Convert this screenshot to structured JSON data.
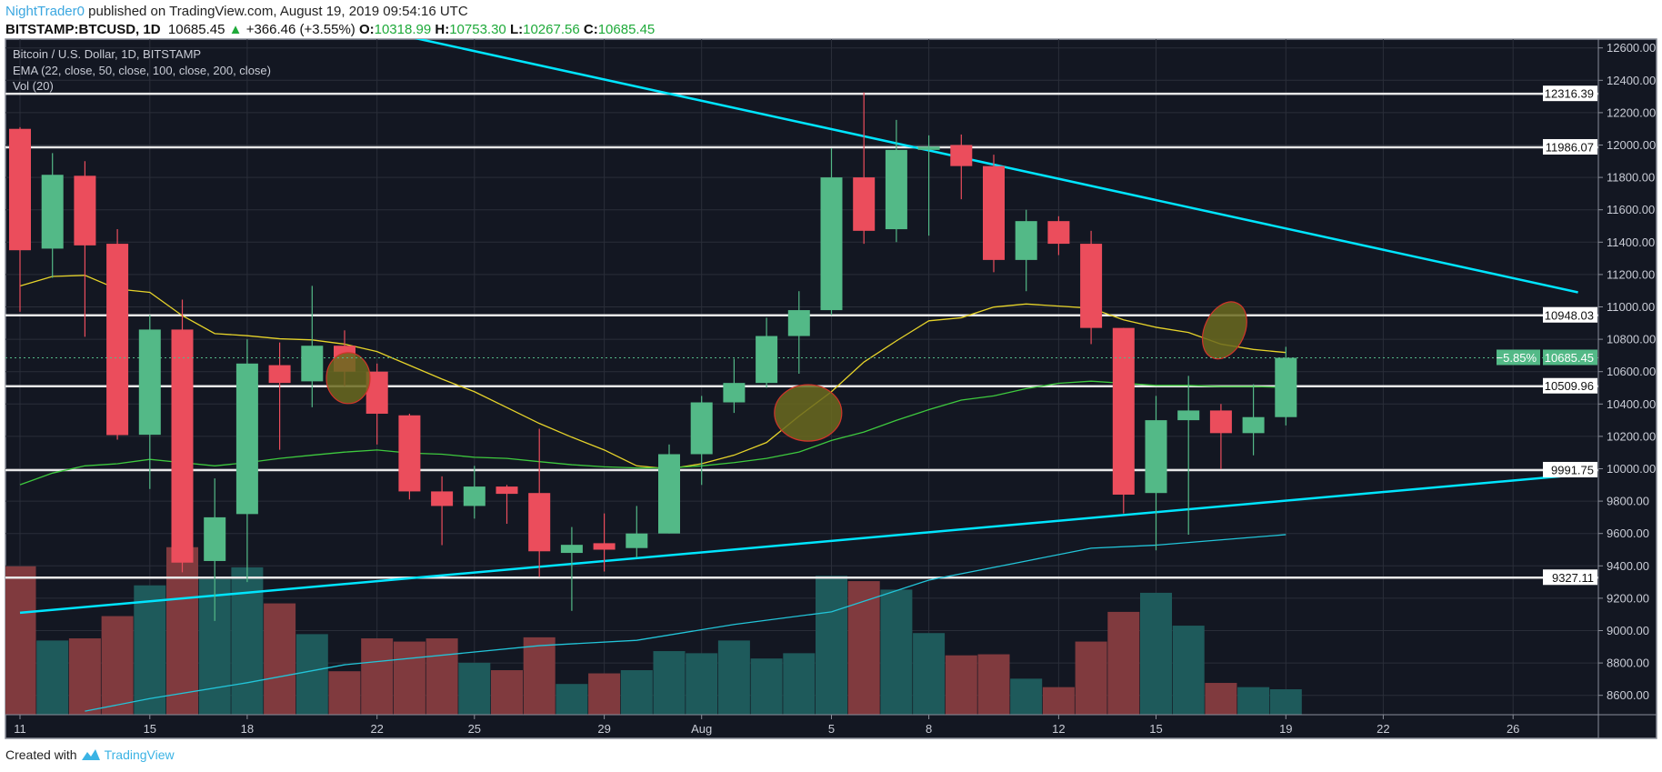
{
  "header": {
    "author": "NightTrader0",
    "published_text": "published on TradingView.com, August 19, 2019 09:54:16 UTC",
    "symbol": "BITSTAMP:BTCUSD, 1D",
    "last": "10685.45",
    "change": "+366.46 (+3.55%)",
    "up_icon": "triangle-up-icon",
    "o_label": "O:",
    "o": "10318.99",
    "h_label": "H:",
    "h": "10753.30",
    "l_label": "L:",
    "l": "10267.56",
    "c_label": "C:",
    "c": "10685.45"
  },
  "legend": {
    "title": "Bitcoin / U.S. Dollar, 1D, BITSTAMP",
    "ema": "EMA (22, close, 50, close, 100, close, 200, close)",
    "vol": "Vol (20)"
  },
  "footer": {
    "created_with": "Created with",
    "brand": "TradingView",
    "logo_icon": "tradingview-logo-icon"
  },
  "colors": {
    "background": "#131722",
    "grid": "#2a2e39",
    "up": "#53b987",
    "down": "#eb4d5c",
    "vol_up": "#1e5a5b",
    "vol_down": "#803a3e",
    "ema22": "#e6d32a",
    "ema50": "#3ec93e",
    "ema100": "#22c4d8",
    "trendline": "#00e5ff",
    "level": "#e8e8e8",
    "ellipse_fill": "#6b6a1e",
    "ellipse_stroke": "#d0352a"
  },
  "chart_data": {
    "type": "candlestick",
    "price_axis": {
      "min": 8600,
      "max": 12600,
      "step": 200,
      "tick_labels": [
        "12600.00",
        "12400.00",
        "12200.00",
        "12000.00",
        "11800.00",
        "11600.00",
        "11400.00",
        "11200.00",
        "11000.00",
        "10800.00",
        "10600.00",
        "10400.00",
        "10200.00",
        "10000.00",
        "9800.00",
        "9600.00",
        "9400.00",
        "9200.00",
        "9000.00",
        "8800.00",
        "8600.00"
      ]
    },
    "x_ticks": [
      {
        "label": "11",
        "date": "2019-07-11"
      },
      {
        "label": "15",
        "date": "2019-07-15"
      },
      {
        "label": "18",
        "date": "2019-07-18"
      },
      {
        "label": "22",
        "date": "2019-07-22"
      },
      {
        "label": "25",
        "date": "2019-07-25"
      },
      {
        "label": "29",
        "date": "2019-07-29"
      },
      {
        "label": "Aug",
        "date": "2019-08-01"
      },
      {
        "label": "5",
        "date": "2019-08-05"
      },
      {
        "label": "8",
        "date": "2019-08-08"
      },
      {
        "label": "12",
        "date": "2019-08-12"
      },
      {
        "label": "15",
        "date": "2019-08-15"
      },
      {
        "label": "19",
        "date": "2019-08-19"
      },
      {
        "label": "22",
        "date": "2019-08-22"
      },
      {
        "label": "26",
        "date": "2019-08-26"
      }
    ],
    "candles": [
      {
        "date": "2019-07-11",
        "o": 12100,
        "h": 12110,
        "l": 10970,
        "c": 11350,
        "v": 140
      },
      {
        "date": "2019-07-12",
        "o": 11360,
        "h": 11950,
        "l": 11180,
        "c": 11816,
        "v": 70
      },
      {
        "date": "2019-07-13",
        "o": 11810,
        "h": 11900,
        "l": 10815,
        "c": 11380,
        "v": 72
      },
      {
        "date": "2019-07-14",
        "o": 11390,
        "h": 11480,
        "l": 10180,
        "c": 10208,
        "v": 93
      },
      {
        "date": "2019-07-15",
        "o": 10210,
        "h": 10950,
        "l": 9875,
        "c": 10860,
        "v": 122
      },
      {
        "date": "2019-07-16",
        "o": 10860,
        "h": 11045,
        "l": 9360,
        "c": 9420,
        "v": 158
      },
      {
        "date": "2019-07-17",
        "o": 9430,
        "h": 9940,
        "l": 9060,
        "c": 9700,
        "v": 128
      },
      {
        "date": "2019-07-18",
        "o": 9720,
        "h": 10800,
        "l": 9300,
        "c": 10650,
        "v": 139
      },
      {
        "date": "2019-07-19",
        "o": 10640,
        "h": 10780,
        "l": 10117,
        "c": 10530,
        "v": 105
      },
      {
        "date": "2019-07-20",
        "o": 10540,
        "h": 11130,
        "l": 10380,
        "c": 10760,
        "v": 76
      },
      {
        "date": "2019-07-21",
        "o": 10760,
        "h": 10855,
        "l": 10510,
        "c": 10600,
        "v": 41
      },
      {
        "date": "2019-07-22",
        "o": 10600,
        "h": 10650,
        "l": 10150,
        "c": 10340,
        "v": 72
      },
      {
        "date": "2019-07-23",
        "o": 10330,
        "h": 10340,
        "l": 9810,
        "c": 9860,
        "v": 69
      },
      {
        "date": "2019-07-24",
        "o": 9860,
        "h": 9953,
        "l": 9528,
        "c": 9770,
        "v": 72
      },
      {
        "date": "2019-07-25",
        "o": 9770,
        "h": 10018,
        "l": 9692,
        "c": 9890,
        "v": 49
      },
      {
        "date": "2019-07-26",
        "o": 9890,
        "h": 9900,
        "l": 9660,
        "c": 9845,
        "v": 42
      },
      {
        "date": "2019-07-27",
        "o": 9850,
        "h": 10247,
        "l": 9332,
        "c": 9490,
        "v": 73
      },
      {
        "date": "2019-07-28",
        "o": 9480,
        "h": 9640,
        "l": 9122,
        "c": 9530,
        "v": 29
      },
      {
        "date": "2019-07-29",
        "o": 9540,
        "h": 9724,
        "l": 9365,
        "c": 9500,
        "v": 39
      },
      {
        "date": "2019-07-30",
        "o": 9510,
        "h": 9770,
        "l": 9450,
        "c": 9600,
        "v": 42
      },
      {
        "date": "2019-07-31",
        "o": 9600,
        "h": 10150,
        "l": 9600,
        "c": 10090,
        "v": 60
      },
      {
        "date": "2019-08-01",
        "o": 10090,
        "h": 10450,
        "l": 9900,
        "c": 10410,
        "v": 58
      },
      {
        "date": "2019-08-02",
        "o": 10410,
        "h": 10680,
        "l": 10345,
        "c": 10530,
        "v": 70
      },
      {
        "date": "2019-08-03",
        "o": 10530,
        "h": 10933,
        "l": 10500,
        "c": 10820,
        "v": 53
      },
      {
        "date": "2019-08-04",
        "o": 10820,
        "h": 11097,
        "l": 10587,
        "c": 10980,
        "v": 58
      },
      {
        "date": "2019-08-05",
        "o": 10980,
        "h": 11980,
        "l": 10950,
        "c": 11800,
        "v": 131
      },
      {
        "date": "2019-08-06",
        "o": 11800,
        "h": 12325,
        "l": 11390,
        "c": 11470,
        "v": 126
      },
      {
        "date": "2019-08-07",
        "o": 11480,
        "h": 12155,
        "l": 11400,
        "c": 11970,
        "v": 118
      },
      {
        "date": "2019-08-08",
        "o": 11970,
        "h": 12060,
        "l": 11440,
        "c": 11990,
        "v": 77
      },
      {
        "date": "2019-08-09",
        "o": 12000,
        "h": 12065,
        "l": 11665,
        "c": 11870,
        "v": 56
      },
      {
        "date": "2019-08-10",
        "o": 11870,
        "h": 11940,
        "l": 11214,
        "c": 11290,
        "v": 57
      },
      {
        "date": "2019-08-11",
        "o": 11290,
        "h": 11600,
        "l": 11097,
        "c": 11530,
        "v": 34
      },
      {
        "date": "2019-08-12",
        "o": 11530,
        "h": 11560,
        "l": 11320,
        "c": 11390,
        "v": 26
      },
      {
        "date": "2019-08-13",
        "o": 11390,
        "h": 11470,
        "l": 10770,
        "c": 10870,
        "v": 69
      },
      {
        "date": "2019-08-14",
        "o": 10870,
        "h": 10870,
        "l": 9724,
        "c": 9840,
        "v": 97
      },
      {
        "date": "2019-08-15",
        "o": 9850,
        "h": 10450,
        "l": 9496,
        "c": 10300,
        "v": 115
      },
      {
        "date": "2019-08-16",
        "o": 10300,
        "h": 10574,
        "l": 9593,
        "c": 10360,
        "v": 84
      },
      {
        "date": "2019-08-17",
        "o": 10360,
        "h": 10400,
        "l": 9998,
        "c": 10220,
        "v": 30
      },
      {
        "date": "2019-08-18",
        "o": 10220,
        "h": 10522,
        "l": 10083,
        "c": 10319,
        "v": 26
      },
      {
        "date": "2019-08-19",
        "o": 10318.99,
        "h": 10753.3,
        "l": 10267.56,
        "c": 10685.45,
        "v": 24
      }
    ],
    "ema22": [
      11129,
      11188,
      11195,
      11110,
      11090,
      10946,
      10835,
      10822,
      10803,
      10796,
      10770,
      10724,
      10639,
      10554,
      10476,
      10378,
      10280,
      10195,
      10116,
      10018,
      9999,
      10031,
      10084,
      10162,
      10325,
      10476,
      10659,
      10790,
      10914,
      10933,
      10999,
      11018,
      11005,
      10992,
      10920,
      10874,
      10842,
      10770,
      10737,
      10718
    ],
    "ema50": [
      9901,
      9973,
      10018,
      10031,
      10058,
      10038,
      10018,
      10038,
      10064,
      10084,
      10103,
      10116,
      10097,
      10090,
      10071,
      10064,
      10044,
      10025,
      10012,
      10005,
      10005,
      10018,
      10038,
      10064,
      10103,
      10175,
      10227,
      10299,
      10365,
      10424,
      10450,
      10495,
      10528,
      10541,
      10528,
      10515,
      10515,
      10508,
      10508,
      10502
    ],
    "ema100": [
      {
        "date": "2019-07-13",
        "price": 8502
      },
      {
        "date": "2019-07-15",
        "price": 8580
      },
      {
        "date": "2019-07-18",
        "price": 8678
      },
      {
        "date": "2019-07-21",
        "price": 8789
      },
      {
        "date": "2019-07-27",
        "price": 8907
      },
      {
        "date": "2019-07-30",
        "price": 8940
      },
      {
        "date": "2019-08-02",
        "price": 9038
      },
      {
        "date": "2019-08-05",
        "price": 9116
      },
      {
        "date": "2019-08-08",
        "price": 9312
      },
      {
        "date": "2019-08-11",
        "price": 9430
      },
      {
        "date": "2019-08-13",
        "price": 9509
      },
      {
        "date": "2019-08-15",
        "price": 9528
      },
      {
        "date": "2019-08-19",
        "price": 9593
      }
    ],
    "trendlines": [
      {
        "from": {
          "date": "2019-07-23",
          "price": 12668
        },
        "to": {
          "date": "2019-08-28",
          "price": 11090
        }
      },
      {
        "from": {
          "date": "2019-07-11",
          "price": 9110
        },
        "to": {
          "date": "2019-08-28",
          "price": 9963
        }
      }
    ],
    "levels": [
      {
        "price": 12316.39,
        "label": "12316.39"
      },
      {
        "price": 11986.07,
        "label": "11986.07"
      },
      {
        "price": 10948.03,
        "label": "10948.03"
      },
      {
        "price": 10509.96,
        "label": "10509.96"
      },
      {
        "price": 9991.75,
        "label": "9991.75"
      },
      {
        "price": 9327.11,
        "label": "9327.11"
      }
    ],
    "last_price": {
      "price": 10685.45,
      "label": "10685.45",
      "change_label": "−5.85%"
    },
    "ellipses": [
      {
        "date": "2019-07-21",
        "price": 10560
      },
      {
        "date": "2019-08-04",
        "price": 10345
      },
      {
        "date": "2019-08-17",
        "price": 10855
      }
    ]
  }
}
